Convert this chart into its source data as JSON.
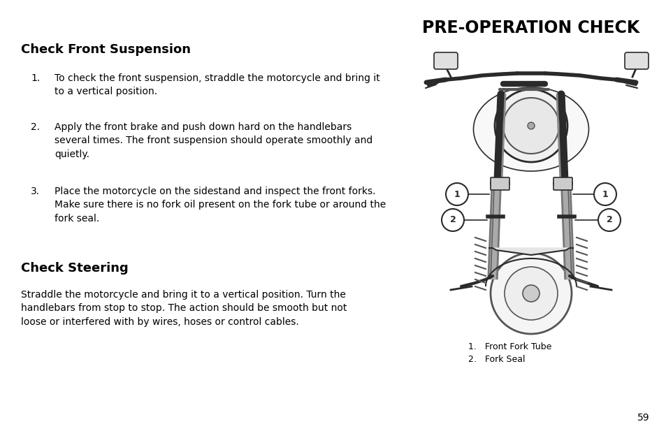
{
  "background_color": "#ffffff",
  "title": "PRE-OPERATION CHECK",
  "title_fontsize": 17,
  "title_fontweight": "bold",
  "section1_title": "Check Front Suspension",
  "section1_title_fontsize": 13,
  "section1_title_fontweight": "bold",
  "item1_num": "1.",
  "item1_text": "To check the front suspension, straddle the motorcycle and bring it\nto a vertical position.",
  "item2_num": "2.",
  "item2_text": "Apply the front brake and push down hard on the handlebars\nseveral times. The front suspension should operate smoothly and\nquietly.",
  "item3_num": "3.",
  "item3_text": "Place the motorcycle on the sidestand and inspect the front forks.\nMake sure there is no fork oil present on the fork tube or around the\nfork seal.",
  "section2_title": "Check Steering",
  "section2_title_fontsize": 13,
  "section2_title_fontweight": "bold",
  "steering_text": "Straddle the motorcycle and bring it to a vertical position. Turn the\nhandlebars from stop to stop. The action should be smooth but not\nloose or interfered with by wires, hoses or control cables.",
  "legend1": "1.   Front Fork Tube",
  "legend2": "2.   Fork Seal",
  "page_num": "59",
  "body_fontsize": 10,
  "legend_fontsize": 9,
  "text_color": "#000000"
}
